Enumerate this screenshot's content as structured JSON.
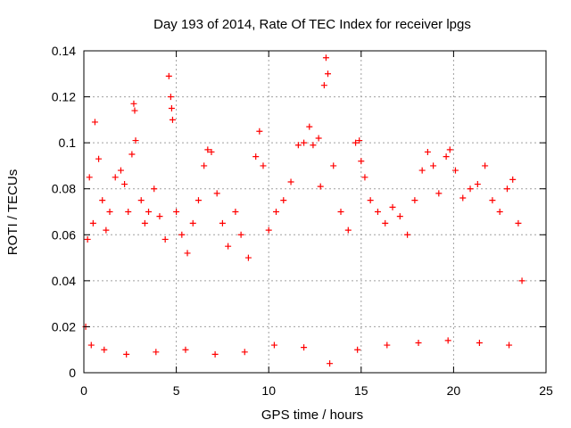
{
  "chart_data": {
    "type": "scatter",
    "title": "Day 193 of 2014, Rate Of TEC Index for receiver lpgs",
    "xlabel": "GPS time / hours",
    "ylabel": "ROTI / TECUs",
    "xlim": [
      0,
      25
    ],
    "ylim": [
      0,
      0.14
    ],
    "xticks": [
      0,
      5,
      10,
      15,
      20,
      25
    ],
    "yticks": [
      0,
      0.02,
      0.04,
      0.06,
      0.08,
      0.1,
      0.12,
      0.14
    ],
    "ytick_labels": [
      "0",
      "0.02",
      "0.04",
      "0.06",
      "0.08",
      "0.1",
      "0.12",
      "0.14"
    ],
    "grid": true,
    "marker": "+",
    "series": [
      {
        "name": "ROTI",
        "color": "#ff0000",
        "points": [
          [
            0.1,
            0.02
          ],
          [
            0.2,
            0.058
          ],
          [
            0.3,
            0.085
          ],
          [
            0.5,
            0.065
          ],
          [
            0.6,
            0.109
          ],
          [
            0.8,
            0.093
          ],
          [
            1.0,
            0.075
          ],
          [
            1.2,
            0.062
          ],
          [
            1.4,
            0.07
          ],
          [
            1.7,
            0.085
          ],
          [
            2.0,
            0.088
          ],
          [
            2.2,
            0.082
          ],
          [
            2.4,
            0.07
          ],
          [
            2.6,
            0.095
          ],
          [
            2.7,
            0.117
          ],
          [
            2.75,
            0.114
          ],
          [
            2.8,
            0.101
          ],
          [
            3.1,
            0.075
          ],
          [
            3.3,
            0.065
          ],
          [
            3.5,
            0.07
          ],
          [
            3.8,
            0.08
          ],
          [
            4.1,
            0.068
          ],
          [
            4.4,
            0.058
          ],
          [
            4.6,
            0.129
          ],
          [
            4.7,
            0.12
          ],
          [
            4.75,
            0.115
          ],
          [
            4.8,
            0.11
          ],
          [
            5.0,
            0.07
          ],
          [
            5.3,
            0.06
          ],
          [
            5.6,
            0.052
          ],
          [
            5.9,
            0.065
          ],
          [
            6.2,
            0.075
          ],
          [
            6.5,
            0.09
          ],
          [
            6.7,
            0.097
          ],
          [
            6.9,
            0.096
          ],
          [
            7.2,
            0.078
          ],
          [
            7.5,
            0.065
          ],
          [
            7.8,
            0.055
          ],
          [
            8.2,
            0.07
          ],
          [
            8.5,
            0.06
          ],
          [
            8.9,
            0.05
          ],
          [
            9.3,
            0.094
          ],
          [
            9.5,
            0.105
          ],
          [
            9.7,
            0.09
          ],
          [
            10.0,
            0.062
          ],
          [
            10.4,
            0.07
          ],
          [
            10.8,
            0.075
          ],
          [
            11.2,
            0.083
          ],
          [
            11.6,
            0.099
          ],
          [
            11.9,
            0.1
          ],
          [
            12.2,
            0.107
          ],
          [
            12.4,
            0.099
          ],
          [
            12.7,
            0.102
          ],
          [
            12.8,
            0.081
          ],
          [
            13.0,
            0.125
          ],
          [
            13.1,
            0.137
          ],
          [
            13.2,
            0.13
          ],
          [
            13.5,
            0.09
          ],
          [
            13.9,
            0.07
          ],
          [
            14.3,
            0.062
          ],
          [
            14.7,
            0.1
          ],
          [
            14.9,
            0.101
          ],
          [
            15.0,
            0.092
          ],
          [
            15.2,
            0.085
          ],
          [
            15.5,
            0.075
          ],
          [
            15.9,
            0.07
          ],
          [
            16.3,
            0.065
          ],
          [
            16.7,
            0.072
          ],
          [
            17.1,
            0.068
          ],
          [
            17.5,
            0.06
          ],
          [
            17.9,
            0.075
          ],
          [
            18.3,
            0.088
          ],
          [
            18.6,
            0.096
          ],
          [
            18.9,
            0.09
          ],
          [
            19.2,
            0.078
          ],
          [
            19.6,
            0.094
          ],
          [
            19.8,
            0.097
          ],
          [
            20.1,
            0.088
          ],
          [
            20.5,
            0.076
          ],
          [
            20.9,
            0.08
          ],
          [
            21.3,
            0.082
          ],
          [
            21.7,
            0.09
          ],
          [
            22.1,
            0.075
          ],
          [
            22.5,
            0.07
          ],
          [
            22.9,
            0.08
          ],
          [
            23.2,
            0.084
          ],
          [
            23.5,
            0.065
          ],
          [
            23.7,
            0.04
          ],
          [
            0.4,
            0.012
          ],
          [
            1.1,
            0.01
          ],
          [
            2.3,
            0.008
          ],
          [
            3.9,
            0.009
          ],
          [
            5.5,
            0.01
          ],
          [
            7.1,
            0.008
          ],
          [
            8.7,
            0.009
          ],
          [
            10.3,
            0.012
          ],
          [
            11.9,
            0.011
          ],
          [
            13.3,
            0.004
          ],
          [
            14.8,
            0.01
          ],
          [
            16.4,
            0.012
          ],
          [
            18.1,
            0.013
          ],
          [
            19.7,
            0.014
          ],
          [
            21.4,
            0.013
          ],
          [
            23.0,
            0.012
          ]
        ]
      }
    ]
  }
}
